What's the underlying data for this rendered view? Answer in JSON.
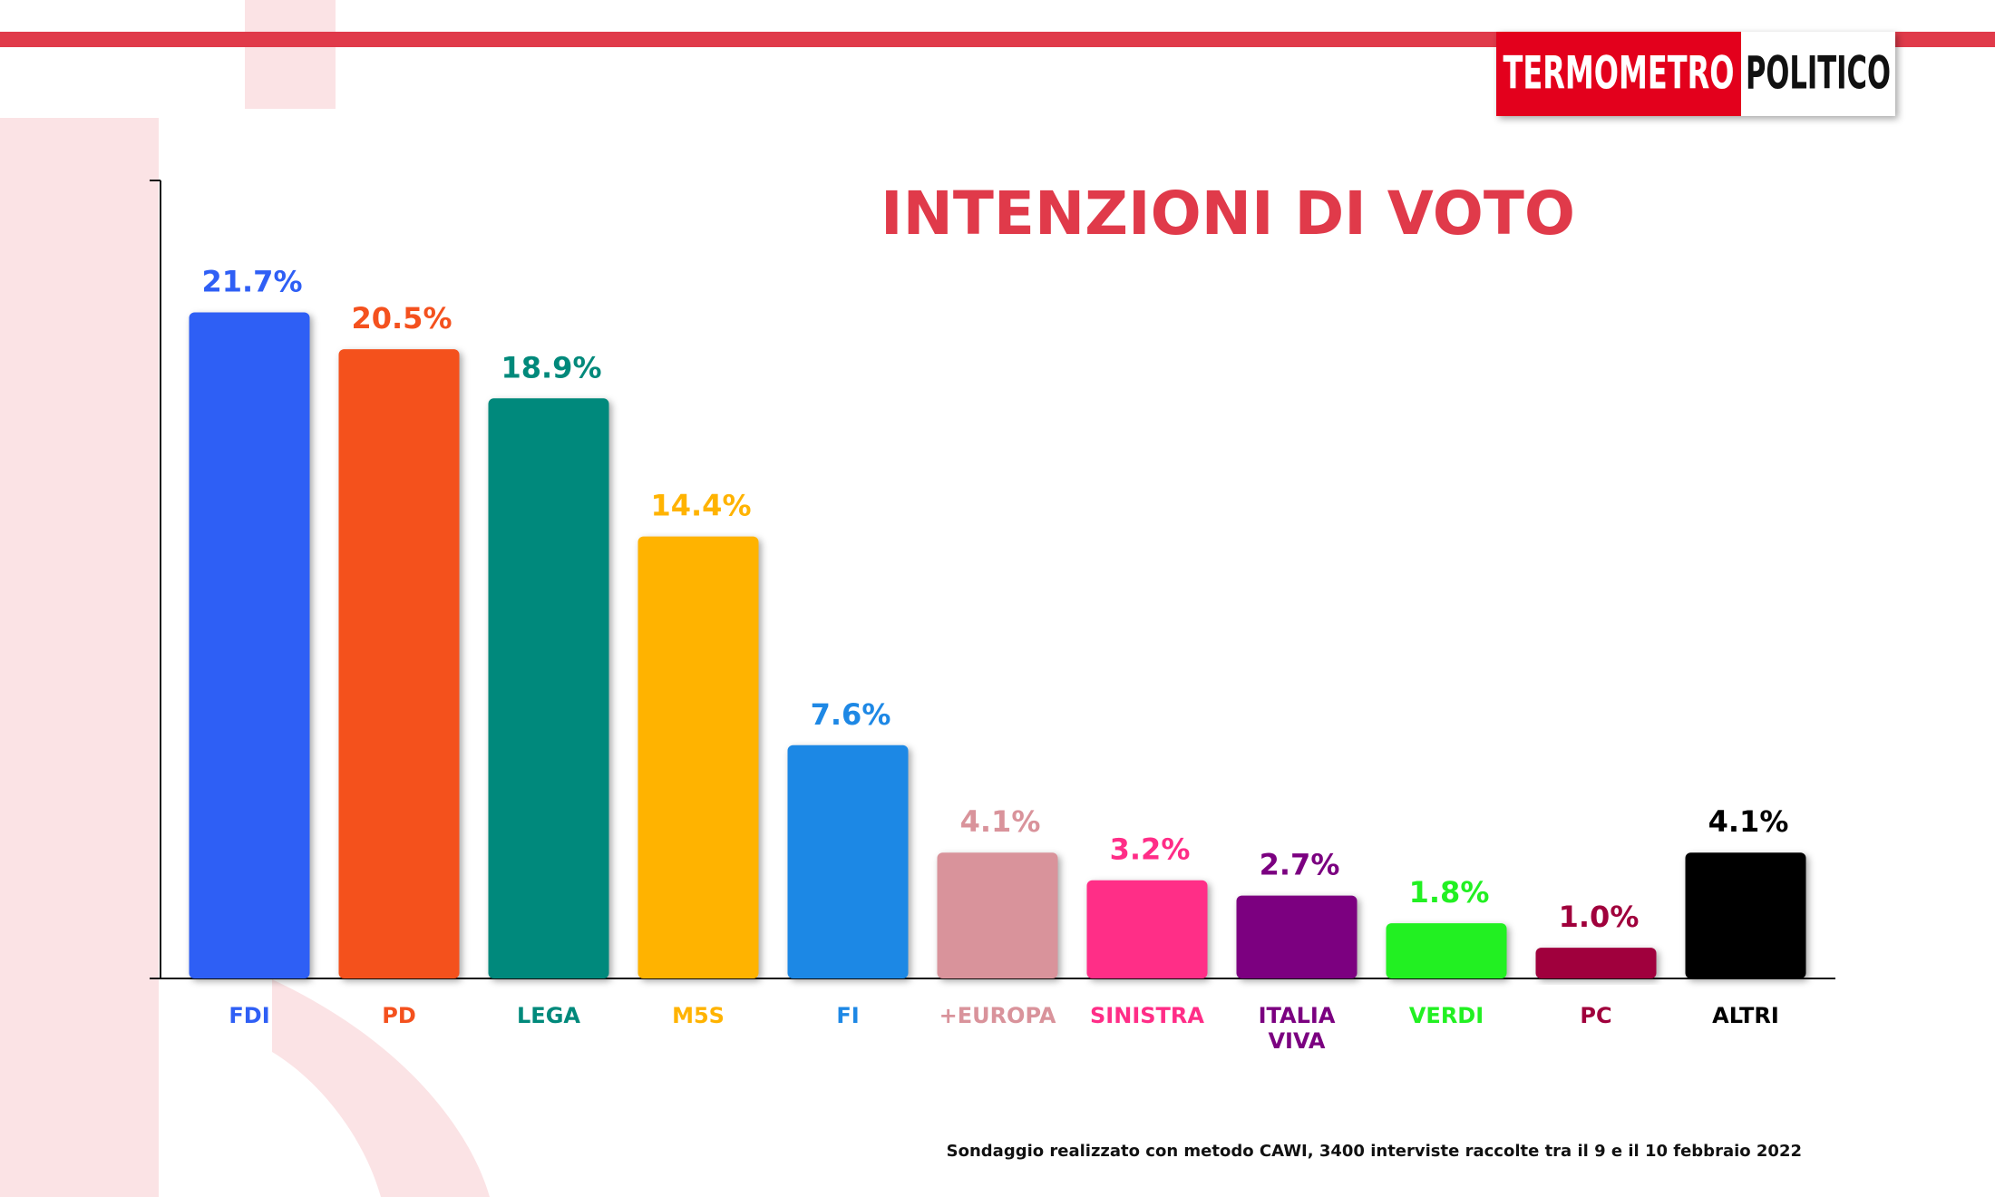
{
  "logo": {
    "left": "TERMOMETRO",
    "right": "POLITICO"
  },
  "footnote": "Sondaggio realizzato con metodo CAWI, 3400 interviste raccolte tra il 9 e il 10 febbraio 2022",
  "chart_data": {
    "type": "bar",
    "title": "INTENZIONI DI VOTO",
    "categories": [
      "FDI",
      "PD",
      "LEGA",
      "M5S",
      "FI",
      "+EUROPA",
      "SINISTRA",
      "ITALIA VIVA",
      "VERDI",
      "PC",
      "ALTRI"
    ],
    "values": [
      21.7,
      20.5,
      18.9,
      14.4,
      7.6,
      4.1,
      3.2,
      2.7,
      1.8,
      1.0,
      4.1
    ],
    "value_labels": [
      "21.7%",
      "20.5%",
      "18.9%",
      "14.4%",
      "7.6%",
      "4.1%",
      "3.2%",
      "2.7%",
      "1.8%",
      "1.0%",
      "4.1%"
    ],
    "colors": [
      "#2f5ff5",
      "#f4511e",
      "#00897b",
      "#ffb300",
      "#1e88e5",
      "#d9939b",
      "#ff2d87",
      "#7b0080",
      "#22f022",
      "#a0003c",
      "#000000"
    ],
    "ylim": [
      0,
      26
    ],
    "grid": false
  }
}
